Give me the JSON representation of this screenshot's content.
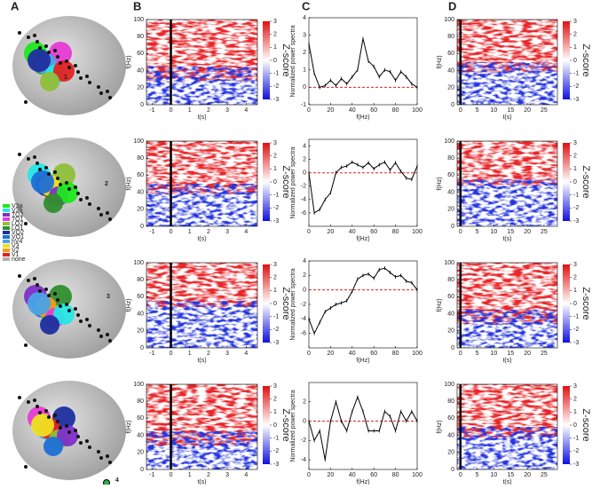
{
  "panel_labels": [
    "A",
    "B",
    "C",
    "D"
  ],
  "legend": [
    {
      "name": "V3a",
      "color": "#1ee81e"
    },
    {
      "name": "V3b",
      "color": "#27e6e6"
    },
    {
      "name": "TO2",
      "color": "#7d2fc9"
    },
    {
      "name": "TO1",
      "color": "#e63bd6"
    },
    {
      "name": "LO2",
      "color": "#8fbf3a"
    },
    {
      "name": "LO1",
      "color": "#2f8f2f"
    },
    {
      "name": "VO2",
      "color": "#1f2f9f"
    },
    {
      "name": "VO1",
      "color": "#1d6fd6"
    },
    {
      "name": "hV4",
      "color": "#4aa3e6"
    },
    {
      "name": "V3",
      "color": "#f0e020"
    },
    {
      "name": "V2",
      "color": "#f39a1c"
    },
    {
      "name": "V1",
      "color": "#e32222"
    },
    {
      "name": "none",
      "color": "#b0b0b0"
    }
  ],
  "rows": [
    {
      "electrode": "1"
    },
    {
      "electrode": "2"
    },
    {
      "electrode": "3"
    },
    {
      "electrode": "4"
    }
  ],
  "spectrogram_b": {
    "xlim": [
      -1.3,
      4.6
    ],
    "xticks": [
      -1,
      0,
      1,
      2,
      3,
      4
    ],
    "ylim": [
      0,
      100
    ],
    "yticks": [
      0,
      20,
      40,
      60,
      80,
      100
    ],
    "xlabel": "t(s)",
    "ylabel": "f(Hz)",
    "onset": 0,
    "colorbar": {
      "ticks": [
        -3,
        -2,
        -1,
        0,
        1,
        2,
        3
      ],
      "label": "Z-score"
    }
  },
  "spectrogram_d": {
    "xlim": [
      -1,
      29
    ],
    "xticks": [
      0,
      5,
      10,
      15,
      20,
      25
    ],
    "ylim": [
      0,
      100
    ],
    "yticks": [
      0,
      20,
      40,
      60,
      80,
      100
    ],
    "xlabel": "t(s)",
    "ylabel": "f(Hz)",
    "onset": 0,
    "colorbar": {
      "ticks": [
        -3,
        -2,
        -1,
        0,
        1,
        2,
        3
      ],
      "label": "Z-score"
    }
  },
  "spectra": [
    {
      "type": "line",
      "xlabel": "f(Hz)",
      "ylabel": "Normalized power spectra",
      "xlim": [
        0,
        100
      ],
      "xticks": [
        0,
        20,
        40,
        60,
        80,
        100
      ],
      "ylim": [
        -1,
        4
      ],
      "yticks": [
        -1,
        0,
        1,
        2,
        3,
        4
      ],
      "hline": 0,
      "color": "#000000",
      "hline_color": "#e02020",
      "x": [
        0,
        5,
        10,
        15,
        20,
        25,
        30,
        35,
        40,
        45,
        50,
        55,
        60,
        65,
        70,
        75,
        80,
        85,
        90,
        95,
        100
      ],
      "values": [
        2.5,
        0.8,
        0,
        0.1,
        0.4,
        0.1,
        0.5,
        0.2,
        0.6,
        1,
        2.8,
        1.5,
        1.2,
        0.6,
        1,
        0.9,
        0.4,
        0.9,
        0.6,
        0.2,
        0
      ]
    },
    {
      "type": "line",
      "xlabel": "f(Hz)",
      "ylabel": "Normalized power spectra",
      "xlim": [
        0,
        100
      ],
      "xticks": [
        0,
        20,
        40,
        60,
        80,
        100
      ],
      "ylim": [
        -8,
        5
      ],
      "yticks": [
        -6,
        -4,
        -2,
        0,
        2,
        4
      ],
      "hline": 0,
      "color": "#000000",
      "hline_color": "#e02020",
      "x": [
        0,
        5,
        10,
        15,
        20,
        25,
        30,
        35,
        40,
        45,
        50,
        55,
        60,
        65,
        70,
        75,
        80,
        85,
        90,
        95,
        100
      ],
      "values": [
        0,
        -6,
        -5.5,
        -4,
        -3,
        0,
        0.8,
        1,
        1.6,
        1.2,
        0.8,
        1.5,
        0.6,
        1.2,
        1.6,
        0.4,
        1.5,
        0.2,
        -0.8,
        -1,
        1
      ]
    },
    {
      "type": "line",
      "xlabel": "f(Hz)",
      "ylabel": "Normalized power spectra",
      "xlim": [
        0,
        100
      ],
      "xticks": [
        0,
        20,
        40,
        60,
        80,
        100
      ],
      "ylim": [
        -8,
        4
      ],
      "yticks": [
        -6,
        -4,
        -2,
        0,
        2,
        4
      ],
      "hline": 0,
      "color": "#000000",
      "hline_color": "#e02020",
      "x": [
        0,
        5,
        10,
        15,
        20,
        25,
        30,
        35,
        40,
        45,
        50,
        55,
        60,
        65,
        70,
        75,
        80,
        85,
        90,
        95,
        100
      ],
      "values": [
        -4,
        -6,
        -4.5,
        -3,
        -2.5,
        -2,
        -1.8,
        -1.5,
        -0.2,
        1.5,
        2,
        2.2,
        1.6,
        2.8,
        3,
        2.4,
        1.8,
        2,
        1.2,
        1,
        0
      ]
    },
    {
      "type": "line",
      "xlabel": "f(Hz)",
      "ylabel": "Normalized power spectra",
      "xlim": [
        0,
        100
      ],
      "xticks": [
        0,
        20,
        40,
        60,
        80,
        100
      ],
      "ylim": [
        -5,
        4
      ],
      "yticks": [
        -4,
        -2,
        0,
        2
      ],
      "hline": 0,
      "color": "#000000",
      "hline_color": "#e02020",
      "x": [
        0,
        5,
        10,
        15,
        20,
        25,
        30,
        35,
        40,
        45,
        50,
        55,
        60,
        65,
        70,
        75,
        80,
        85,
        90,
        95,
        100
      ],
      "values": [
        0,
        -2,
        -1,
        -4,
        0,
        2,
        0,
        -1,
        1,
        2.5,
        1,
        -1,
        -1,
        -1,
        1,
        0.5,
        -1,
        1,
        0,
        1,
        0
      ]
    }
  ]
}
